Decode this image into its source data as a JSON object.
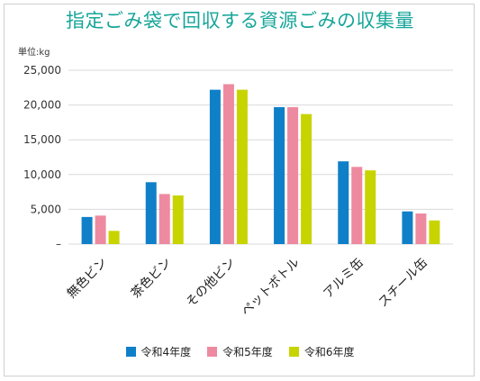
{
  "chart_data": {
    "type": "bar",
    "title": "指定ごみ袋で回収する資源ごみの収集量",
    "unit_label": "単位:kg",
    "categories": [
      "無色ビン",
      "茶色ビン",
      "その他ビン",
      "ペットボトル",
      "アルミ缶",
      "スチール缶"
    ],
    "series": [
      {
        "name": "令和4年度",
        "color": "#0f80c8",
        "values": [
          3900,
          8900,
          22200,
          19700,
          11900,
          4700
        ]
      },
      {
        "name": "令和5年度",
        "color": "#ee8aa0",
        "values": [
          4100,
          7200,
          23000,
          19700,
          11100,
          4400
        ]
      },
      {
        "name": "令和6年度",
        "color": "#c7d400",
        "values": [
          1900,
          7000,
          22200,
          18700,
          10600,
          3400
        ]
      }
    ],
    "ylim": [
      0,
      25000
    ],
    "y_ticks": [
      0,
      5000,
      10000,
      15000,
      20000,
      25000
    ],
    "y_tick_labels": [
      "–",
      "5,000",
      "10,000",
      "15,000",
      "20,000",
      "25,000"
    ],
    "grid": true,
    "legend_position": "bottom"
  }
}
